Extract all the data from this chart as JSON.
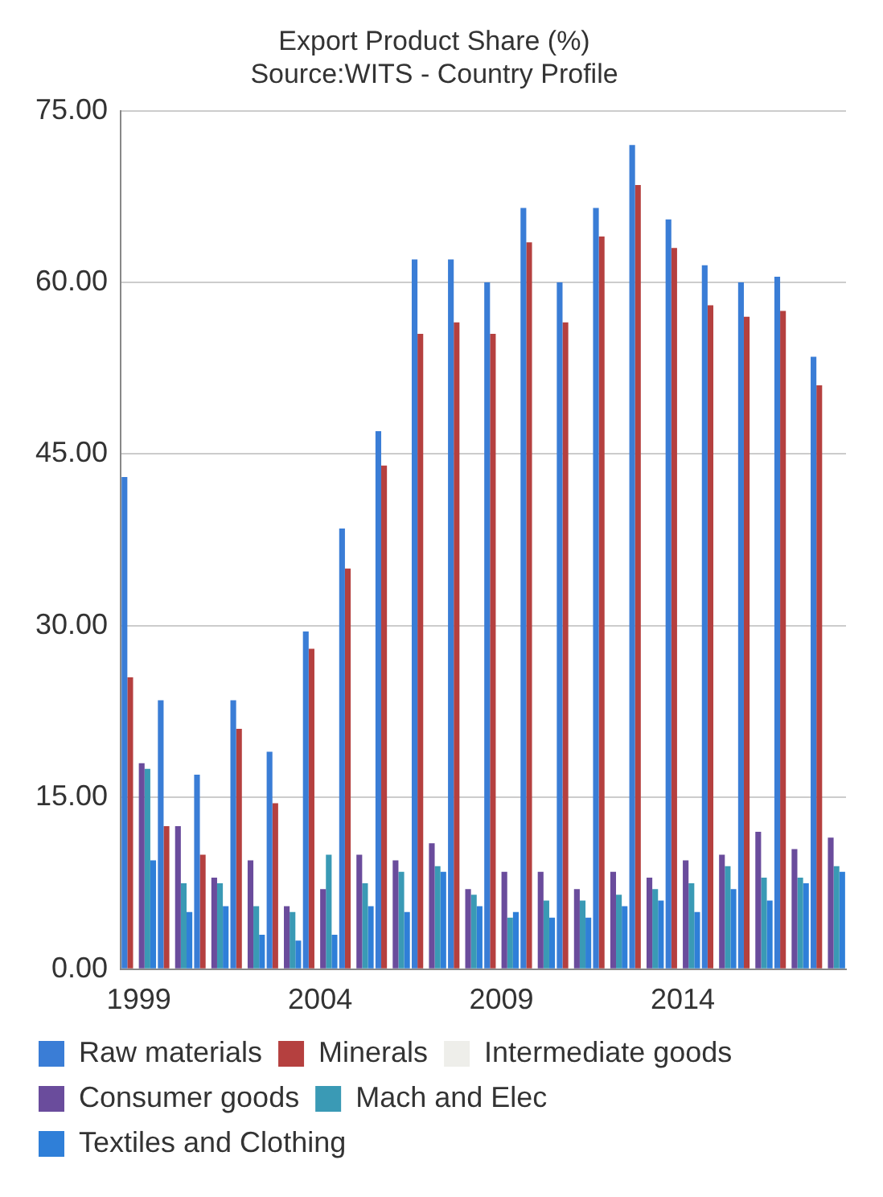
{
  "chart_data": {
    "type": "bar",
    "title": "Export Product Share (%)",
    "subtitle": "Source:WITS - Country Profile",
    "categories": [
      "1999",
      null,
      null,
      null,
      null,
      "2004",
      null,
      null,
      null,
      null,
      "2009",
      null,
      null,
      null,
      null,
      "2014",
      null,
      null,
      null,
      null
    ],
    "series": [
      {
        "name": "Raw materials",
        "color": "#3a7dd6",
        "values": [
          43,
          23.5,
          17,
          23.5,
          19,
          29.5,
          38.5,
          47,
          62,
          62,
          60,
          66.5,
          60,
          66.5,
          72,
          65.5,
          61.5,
          60,
          60.5,
          53.5
        ]
      },
      {
        "name": "Minerals",
        "color": "#b5403f",
        "values": [
          25.5,
          12.5,
          10,
          21,
          14.5,
          28,
          35,
          44,
          55.5,
          56.5,
          55.5,
          63.5,
          56.5,
          64,
          68.5,
          63,
          58,
          57,
          57.5,
          51
        ]
      },
      {
        "name": "Intermediate goods",
        "color": "#eeeeea",
        "values": [
          null,
          null,
          null,
          null,
          null,
          null,
          null,
          null,
          null,
          null,
          null,
          null,
          null,
          null,
          null,
          null,
          null,
          null,
          null,
          null
        ]
      },
      {
        "name": "Consumer goods",
        "color": "#6a4c9c",
        "values": [
          18,
          12.5,
          8,
          9.5,
          5.5,
          7,
          10,
          9.5,
          11,
          7,
          8.5,
          8.5,
          7,
          8.5,
          8,
          9.5,
          10,
          12,
          10.5,
          11.5
        ]
      },
      {
        "name": "Mach and Elec",
        "color": "#3a9ab5",
        "values": [
          17.5,
          7.5,
          7.5,
          5.5,
          5,
          10,
          7.5,
          8.5,
          9,
          6.5,
          4.5,
          6,
          6,
          6.5,
          7,
          7.5,
          9,
          8,
          8,
          9
        ]
      },
      {
        "name": "Textiles and Clothing",
        "color": "#2f7fd8",
        "values": [
          9.5,
          5,
          5.5,
          3,
          2.5,
          3,
          5.5,
          5,
          8.5,
          5.5,
          5,
          4.5,
          4.5,
          5.5,
          6,
          5,
          7,
          6,
          7.5,
          8.5
        ]
      }
    ],
    "ylim": [
      0,
      75
    ],
    "yticks": [
      {
        "value": 0,
        "label": "0.00"
      },
      {
        "value": 15,
        "label": "15.00"
      },
      {
        "value": 30,
        "label": "30.00"
      },
      {
        "value": 45,
        "label": "45.00"
      },
      {
        "value": 60,
        "label": "60.00"
      },
      {
        "value": 75,
        "label": "75.00"
      }
    ],
    "grid": "y",
    "legend": "bottom"
  }
}
